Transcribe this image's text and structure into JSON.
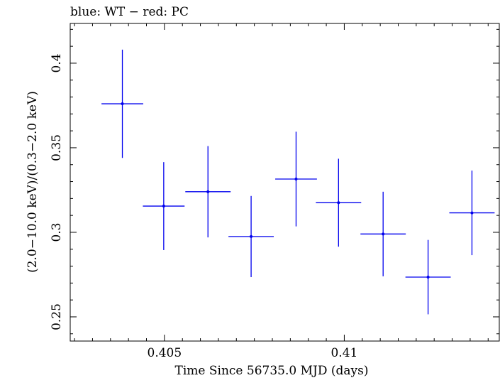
{
  "chart_data": {
    "type": "scatter",
    "title": "blue: WT − red: PC",
    "xlabel": "Time Since 56735.0 MJD (days)",
    "ylabel": "(2.0−10.0 keV)/(0.3−2.0 keV)",
    "xlim": [
      0.40238,
      0.41431
    ],
    "ylim": [
      0.2357,
      0.4235
    ],
    "x_ticks": [
      0.405,
      0.41
    ],
    "x_tick_labels": [
      "0.405",
      "0.41"
    ],
    "y_ticks": [
      0.25,
      0.3,
      0.35,
      0.4
    ],
    "y_tick_labels": [
      "0.25",
      "0.3",
      "0.35",
      "0.4"
    ],
    "grid": false,
    "colors": {
      "series": "#0000ee",
      "axes": "#000000"
    },
    "series": [
      {
        "points": [
          {
            "x": 0.40383,
            "xerr": 0.00058,
            "y": 0.376,
            "yerr_low": 0.032,
            "yerr_high": 0.032
          },
          {
            "x": 0.40498,
            "xerr": 0.00058,
            "y": 0.3155,
            "yerr_low": 0.026,
            "yerr_high": 0.026
          },
          {
            "x": 0.40621,
            "xerr": 0.00063,
            "y": 0.324,
            "yerr_low": 0.027,
            "yerr_high": 0.027
          },
          {
            "x": 0.40741,
            "xerr": 0.00063,
            "y": 0.2975,
            "yerr_low": 0.024,
            "yerr_high": 0.024
          },
          {
            "x": 0.40866,
            "xerr": 0.00058,
            "y": 0.3315,
            "yerr_low": 0.028,
            "yerr_high": 0.028
          },
          {
            "x": 0.40984,
            "xerr": 0.00063,
            "y": 0.3175,
            "yerr_low": 0.026,
            "yerr_high": 0.026
          },
          {
            "x": 0.41108,
            "xerr": 0.00063,
            "y": 0.299,
            "yerr_low": 0.025,
            "yerr_high": 0.025
          },
          {
            "x": 0.41233,
            "xerr": 0.00063,
            "y": 0.2735,
            "yerr_low": 0.022,
            "yerr_high": 0.022
          },
          {
            "x": 0.41355,
            "xerr": 0.00063,
            "y": 0.3115,
            "yerr_low": 0.025,
            "yerr_high": 0.025
          }
        ]
      }
    ]
  }
}
